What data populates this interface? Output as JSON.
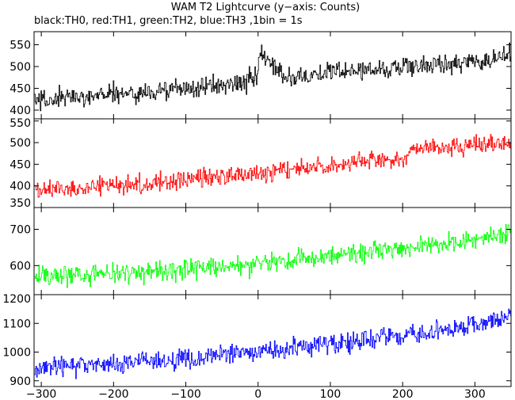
{
  "chart_data": {
    "type": "line",
    "title": "WAM T2 Lightcurve (y−axis: Counts)",
    "subtitle": "black:TH0, red:TH1, green:TH2, blue:TH3 ,1bin = 1s",
    "xlim": [
      -310,
      350
    ],
    "xticks": [
      -300,
      -200,
      -100,
      0,
      100,
      200,
      300
    ],
    "xtick_labels": [
      "−300",
      "−200",
      "−100",
      "0",
      "100",
      "200",
      "300"
    ],
    "grid": false,
    "series": [
      {
        "name": "TH0",
        "color": "#000000",
        "ylim": [
          380,
          580
        ],
        "yticks": [
          400,
          450,
          500,
          550
        ],
        "x": [
          -305,
          -290,
          -270,
          -250,
          -230,
          -210,
          -190,
          -170,
          -150,
          -130,
          -110,
          -90,
          -70,
          -50,
          -30,
          -10,
          -2,
          2,
          10,
          30,
          50,
          70,
          90,
          110,
          130,
          150,
          170,
          190,
          210,
          230,
          250,
          270,
          290,
          310,
          330,
          345
        ],
        "y": [
          425,
          420,
          428,
          430,
          435,
          438,
          440,
          436,
          442,
          445,
          448,
          450,
          455,
          458,
          462,
          468,
          472,
          530,
          515,
          480,
          478,
          482,
          485,
          488,
          490,
          492,
          495,
          498,
          502,
          500,
          505,
          508,
          512,
          515,
          520,
          522
        ],
        "noise": 30
      },
      {
        "name": "TH1",
        "color": "#ff0000",
        "ylim": [
          350,
          555
        ],
        "yticks": [
          350,
          400,
          450,
          500,
          550
        ],
        "x": [
          -305,
          -290,
          -270,
          -250,
          -230,
          -210,
          -190,
          -170,
          -150,
          -130,
          -110,
          -90,
          -70,
          -50,
          -30,
          -10,
          10,
          30,
          50,
          70,
          90,
          110,
          130,
          150,
          170,
          190,
          205,
          215,
          230,
          250,
          270,
          290,
          310,
          330,
          345
        ],
        "y": [
          392,
          390,
          395,
          398,
          400,
          402,
          403,
          405,
          407,
          410,
          412,
          415,
          418,
          420,
          423,
          428,
          432,
          435,
          440,
          443,
          446,
          450,
          452,
          455,
          458,
          460,
          462,
          488,
          487,
          490,
          488,
          495,
          492,
          496,
          500
        ],
        "noise": 28
      },
      {
        "name": "TH2",
        "color": "#00ff00",
        "ylim": [
          520,
          760
        ],
        "yticks": [
          600,
          700
        ],
        "x": [
          -305,
          -290,
          -270,
          -250,
          -230,
          -210,
          -190,
          -170,
          -150,
          -130,
          -110,
          -90,
          -70,
          -50,
          -30,
          -10,
          10,
          30,
          50,
          70,
          90,
          110,
          130,
          150,
          170,
          190,
          210,
          230,
          250,
          270,
          290,
          310,
          330,
          345
        ],
        "y": [
          572,
          570,
          573,
          575,
          577,
          579,
          580,
          582,
          583,
          585,
          588,
          590,
          593,
          596,
          600,
          603,
          608,
          612,
          616,
          620,
          624,
          628,
          632,
          636,
          640,
          644,
          648,
          653,
          658,
          662,
          668,
          675,
          683,
          688
        ],
        "noise": 35
      },
      {
        "name": "TH3",
        "color": "#0000ff",
        "ylim": [
          880,
          1200
        ],
        "yticks": [
          900,
          1000,
          1100,
          1200
        ],
        "x": [
          -305,
          -290,
          -270,
          -250,
          -230,
          -210,
          -190,
          -170,
          -150,
          -130,
          -110,
          -90,
          -70,
          -50,
          -30,
          -10,
          10,
          30,
          50,
          70,
          90,
          110,
          130,
          150,
          170,
          190,
          210,
          230,
          250,
          270,
          290,
          310,
          330,
          345
        ],
        "y": [
          948,
          948,
          950,
          952,
          955,
          958,
          962,
          965,
          968,
          972,
          976,
          980,
          984,
          988,
          993,
          998,
          1002,
          1008,
          1014,
          1020,
          1026,
          1032,
          1038,
          1044,
          1050,
          1056,
          1062,
          1068,
          1075,
          1082,
          1090,
          1100,
          1110,
          1125
        ],
        "noise": 45
      }
    ]
  }
}
